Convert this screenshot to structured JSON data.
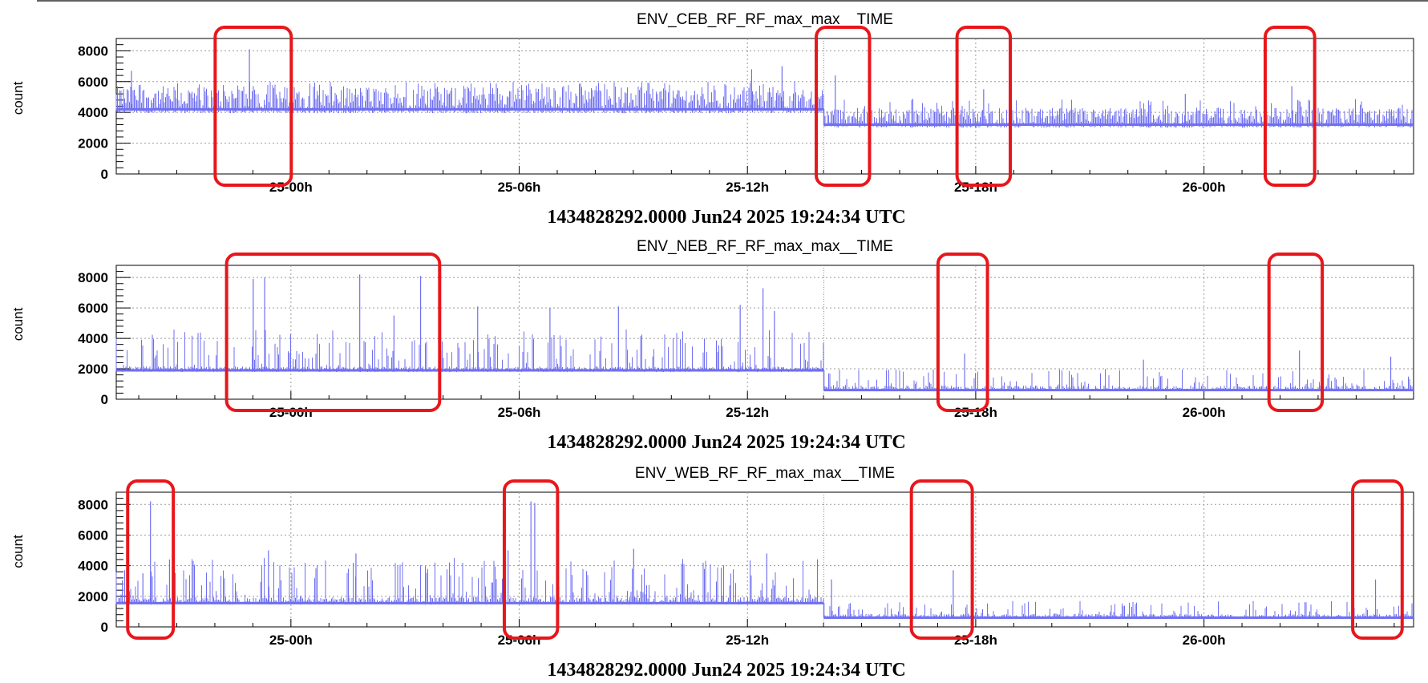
{
  "colors": {
    "series": "#6f6ff2",
    "highlight": "#e8161b",
    "grid": "#9a9a9a",
    "axis": "#000000"
  },
  "chart_data": [
    {
      "type": "line",
      "title": "ENV_CEB_RF_RF_max_max__TIME",
      "ylabel": "count",
      "xlabel": "1434828292.0000 Jun24 2025 19:24:34 UTC",
      "x_range": [
        "Jun24 2025 19:24:34 UTC",
        "Jun26 2025 05:30 UTC"
      ],
      "ylim": [
        0,
        8800
      ],
      "yticks": [
        0,
        2000,
        4000,
        6000,
        8000
      ],
      "xticks": [
        "25-00h",
        "25-06h",
        "25-12h",
        "25-18h",
        "26-00h"
      ],
      "grid": true,
      "series": [
        {
          "segments": [
            {
              "from_h": 0,
              "to_h": 18.6,
              "base": 4200,
              "noise_high": 5700,
              "spike_rate": 0.1,
              "spike_max": 6000
            },
            {
              "from_h": 18.6,
              "to_h": 34.1,
              "base": 3200,
              "noise_high": 4300,
              "spike_rate": 0.08,
              "spike_max": 4900
            }
          ],
          "peaks": [
            {
              "h": 0.4,
              "v": 6700
            },
            {
              "h": 3.5,
              "v": 8100
            },
            {
              "h": 16.7,
              "v": 6800
            },
            {
              "h": 17.5,
              "v": 7000
            },
            {
              "h": 18.9,
              "v": 6400
            },
            {
              "h": 22.8,
              "v": 5500
            },
            {
              "h": 28.1,
              "v": 5200
            },
            {
              "h": 30.9,
              "v": 5700
            }
          ]
        }
      ],
      "highlights": [
        {
          "from_h": 2.6,
          "to_h": 4.6
        },
        {
          "from_h": 18.4,
          "to_h": 19.8
        },
        {
          "from_h": 22.1,
          "to_h": 23.5
        },
        {
          "from_h": 30.2,
          "to_h": 31.5
        }
      ]
    },
    {
      "type": "line",
      "title": "ENV_NEB_RF_RF_max_max__TIME",
      "ylabel": "count",
      "xlabel": "1434828292.0000 Jun24 2025 19:24:34 UTC",
      "x_range": [
        "Jun24 2025 19:24:34 UTC",
        "Jun26 2025 05:30 UTC"
      ],
      "ylim": [
        0,
        8800
      ],
      "yticks": [
        0,
        2000,
        4000,
        6000,
        8000
      ],
      "xticks": [
        "25-00h",
        "25-06h",
        "25-12h",
        "25-18h",
        "26-00h"
      ],
      "grid": true,
      "series": [
        {
          "segments": [
            {
              "from_h": 0,
              "to_h": 18.6,
              "base": 1900,
              "noise_high": 2150,
              "spike_rate": 0.3,
              "spike_max": 4600
            },
            {
              "from_h": 18.6,
              "to_h": 34.1,
              "base": 600,
              "noise_high": 900,
              "spike_rate": 0.2,
              "spike_max": 2000
            }
          ],
          "peaks": [
            {
              "h": 3.6,
              "v": 7900
            },
            {
              "h": 3.9,
              "v": 8000
            },
            {
              "h": 2.9,
              "v": 6800
            },
            {
              "h": 6.4,
              "v": 8200
            },
            {
              "h": 8.0,
              "v": 8100
            },
            {
              "h": 7.3,
              "v": 5500
            },
            {
              "h": 9.5,
              "v": 6100
            },
            {
              "h": 11.4,
              "v": 6000
            },
            {
              "h": 13.2,
              "v": 6100
            },
            {
              "h": 16.4,
              "v": 6200
            },
            {
              "h": 17.0,
              "v": 7300
            },
            {
              "h": 17.3,
              "v": 5800
            },
            {
              "h": 22.3,
              "v": 3000
            },
            {
              "h": 27.0,
              "v": 2600
            },
            {
              "h": 31.1,
              "v": 3200
            },
            {
              "h": 33.5,
              "v": 2800
            }
          ]
        }
      ],
      "highlights": [
        {
          "from_h": 2.9,
          "to_h": 8.5
        },
        {
          "from_h": 21.6,
          "to_h": 22.9
        },
        {
          "from_h": 30.3,
          "to_h": 31.7
        }
      ]
    },
    {
      "type": "line",
      "title": "ENV_WEB_RF_RF_max_max__TIME",
      "ylabel": "count",
      "xlabel": "1434828292.0000 Jun24 2025 19:24:34 UTC",
      "x_range": [
        "Jun24 2025 19:24:34 UTC",
        "Jun26 2025 05:30 UTC"
      ],
      "ylim": [
        0,
        8800
      ],
      "yticks": [
        0,
        2000,
        4000,
        6000,
        8000
      ],
      "xticks": [
        "25-00h",
        "25-06h",
        "25-12h",
        "25-18h",
        "26-00h"
      ],
      "grid": true,
      "series": [
        {
          "segments": [
            {
              "from_h": 0,
              "to_h": 18.6,
              "base": 1550,
              "noise_high": 1950,
              "spike_rate": 0.3,
              "spike_max": 4500
            },
            {
              "from_h": 18.6,
              "to_h": 34.1,
              "base": 600,
              "noise_high": 850,
              "spike_rate": 0.2,
              "spike_max": 1700
            }
          ],
          "peaks": [
            {
              "h": 0.9,
              "v": 8200
            },
            {
              "h": 0.7,
              "v": 3500
            },
            {
              "h": 1.4,
              "v": 4400
            },
            {
              "h": 4.0,
              "v": 5000
            },
            {
              "h": 6.3,
              "v": 4800
            },
            {
              "h": 10.3,
              "v": 5000
            },
            {
              "h": 10.9,
              "v": 8200
            },
            {
              "h": 11.0,
              "v": 8100
            },
            {
              "h": 13.6,
              "v": 5100
            },
            {
              "h": 17.1,
              "v": 4800
            },
            {
              "h": 18.8,
              "v": 3100
            },
            {
              "h": 22.0,
              "v": 3700
            },
            {
              "h": 33.1,
              "v": 3100
            }
          ]
        }
      ],
      "highlights": [
        {
          "from_h": 0.3,
          "to_h": 1.5
        },
        {
          "from_h": 10.2,
          "to_h": 11.6
        },
        {
          "from_h": 20.9,
          "to_h": 22.5
        },
        {
          "from_h": 32.5,
          "to_h": 33.8
        }
      ]
    }
  ]
}
